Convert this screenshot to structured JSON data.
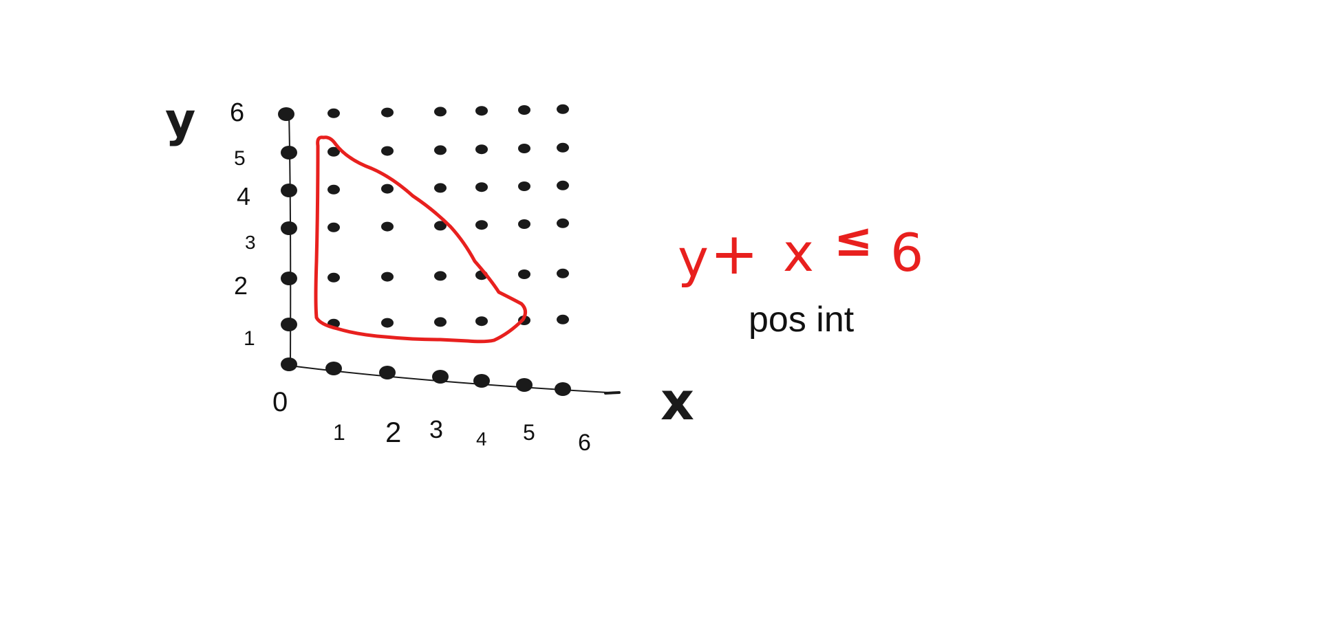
{
  "axes": {
    "x_label": "x",
    "y_label": "y",
    "x_ticks": [
      "0",
      "1",
      "2",
      "3",
      "4",
      "5",
      "6"
    ],
    "y_ticks": [
      "1",
      "2",
      "3",
      "4",
      "5",
      "6"
    ]
  },
  "inequality": {
    "lhs_var1": "y",
    "plus": "+",
    "lhs_var2": "x",
    "relation": "≤",
    "rhs": "6"
  },
  "note": "pos int",
  "colors": {
    "ink": "#1a1a1a",
    "highlight": "#e8201e"
  },
  "lattice": {
    "x_range": [
      0,
      6
    ],
    "y_range": [
      0,
      6
    ],
    "circled_region": "x ≥ 1, y ≥ 1, x + y ≤ 6"
  }
}
